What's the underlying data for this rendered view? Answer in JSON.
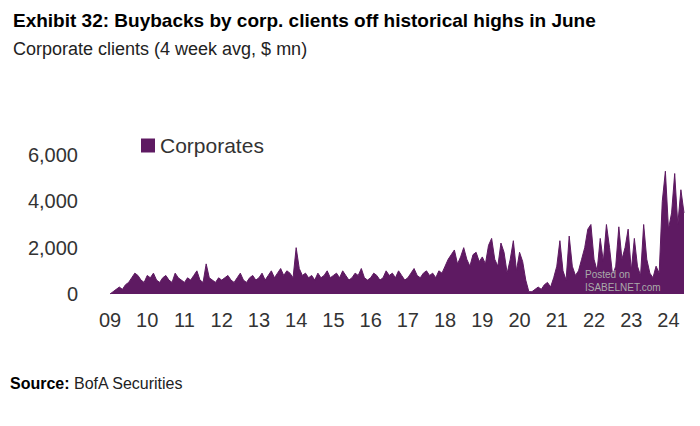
{
  "chart_data": {
    "type": "area",
    "title": "Exhibit 32: Buybacks by corp. clients off historical highs in June",
    "subtitle": "Corporate clients (4 week avg, $ mn)",
    "annotations": [
      "Source: BofA Securities",
      "Posted on\nISABELNET.com"
    ],
    "categories": [
      "09",
      null,
      null,
      null,
      null,
      null,
      null,
      null,
      null,
      null,
      null,
      null,
      "10",
      null,
      null,
      null,
      null,
      null,
      null,
      null,
      null,
      null,
      null,
      null,
      "11",
      null,
      null,
      null,
      null,
      null,
      null,
      null,
      null,
      null,
      null,
      null,
      "12",
      null,
      null,
      null,
      null,
      null,
      null,
      null,
      null,
      null,
      null,
      null,
      "13",
      null,
      null,
      null,
      null,
      null,
      null,
      null,
      null,
      null,
      null,
      null,
      "14",
      null,
      null,
      null,
      null,
      null,
      null,
      null,
      null,
      null,
      null,
      null,
      "15",
      null,
      null,
      null,
      null,
      null,
      null,
      null,
      null,
      null,
      null,
      null,
      "16",
      null,
      null,
      null,
      null,
      null,
      null,
      null,
      null,
      null,
      null,
      null,
      "17",
      null,
      null,
      null,
      null,
      null,
      null,
      null,
      null,
      null,
      null,
      null,
      "18",
      null,
      null,
      null,
      null,
      null,
      null,
      null,
      null,
      null,
      null,
      null,
      "19",
      null,
      null,
      null,
      null,
      null,
      null,
      null,
      null,
      null,
      null,
      null,
      "20",
      null,
      null,
      null,
      null,
      null,
      null,
      null,
      null,
      null,
      null,
      null,
      "21",
      null,
      null,
      null,
      null,
      null,
      null,
      null,
      null,
      null,
      null,
      null,
      "22",
      null,
      null,
      null,
      null,
      null,
      null,
      null,
      null,
      null,
      null,
      null,
      "23",
      null,
      null,
      null,
      null,
      null,
      null,
      null,
      null,
      null,
      null,
      null,
      "24",
      null,
      null,
      null,
      null,
      null
    ],
    "series": [
      {
        "name": "Corporates",
        "color": "#5e1a62",
        "values": [
          0,
          100,
          200,
          300,
          200,
          400,
          500,
          700,
          900,
          800,
          600,
          500,
          800,
          700,
          900,
          600,
          500,
          700,
          800,
          600,
          500,
          900,
          700,
          600,
          500,
          700,
          600,
          800,
          1000,
          600,
          500,
          1300,
          700,
          600,
          500,
          700,
          600,
          700,
          800,
          600,
          500,
          700,
          900,
          600,
          500,
          700,
          800,
          600,
          700,
          900,
          600,
          800,
          1000,
          700,
          900,
          1100,
          800,
          1000,
          900,
          700,
          2000,
          1100,
          800,
          900,
          700,
          800,
          600,
          900,
          700,
          800,
          1000,
          700,
          800,
          900,
          700,
          1000,
          800,
          600,
          700,
          900,
          800,
          1100,
          700,
          600,
          700,
          900,
          800,
          600,
          700,
          1000,
          800,
          900,
          700,
          1000,
          800,
          600,
          700,
          900,
          1100,
          800,
          700,
          900,
          1000,
          800,
          900,
          700,
          1000,
          900,
          1200,
          1500,
          1700,
          1900,
          1300,
          1600,
          2000,
          1500,
          1200,
          1700,
          1800,
          1400,
          1600,
          1300,
          2100,
          2400,
          1500,
          1200,
          2200,
          1800,
          900,
          1500,
          2300,
          1000,
          1800,
          1400,
          600,
          100,
          100,
          200,
          300,
          200,
          400,
          500,
          300,
          700,
          1200,
          2300,
          1000,
          600,
          2500,
          1200,
          800,
          1000,
          1500,
          2000,
          2800,
          3000,
          1500,
          1000,
          2400,
          1400,
          3000,
          2000,
          800,
          1200,
          2900,
          1500,
          2000,
          2800,
          1000,
          2400,
          1200,
          800,
          3000,
          1500,
          900,
          700,
          1200,
          900,
          4000,
          5300,
          2800,
          3500,
          5200,
          3000,
          4500,
          3500
        ]
      }
    ],
    "ylim": [
      0,
      6000
    ],
    "yticks": [
      0,
      {
        "value": 2000,
        "label": "2,000"
      },
      {
        "value": 4000,
        "label": "4,000"
      },
      {
        "value": 6000,
        "label": "6,000"
      }
    ],
    "grid": false,
    "legend": "top-left"
  }
}
